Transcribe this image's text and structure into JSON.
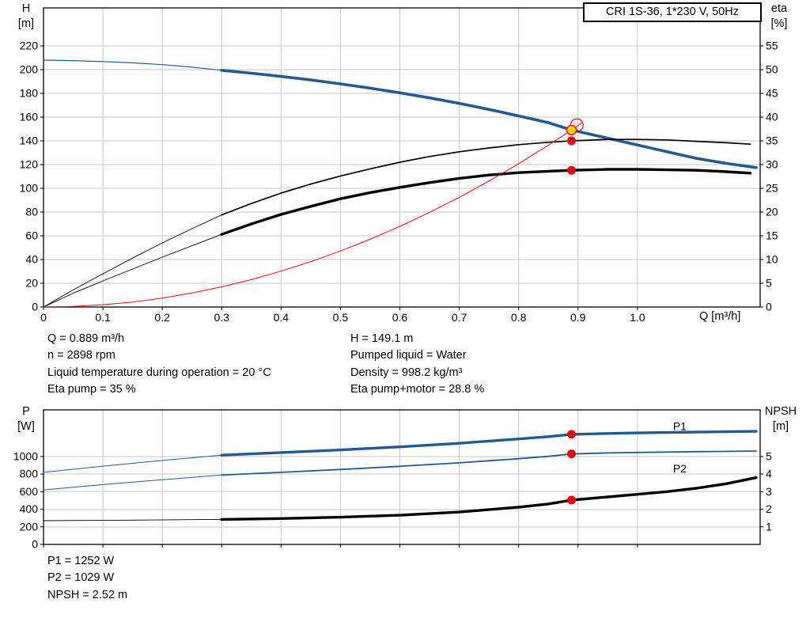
{
  "title_box": {
    "label": "CRI 1S-36, 1*230 V, 50Hz"
  },
  "colors": {
    "blue": "#235a91",
    "red": "#e30613",
    "black": "#000000",
    "yellow": "#ffd500",
    "grid": "#c6c6c6",
    "frame": "#000000"
  },
  "operating_point_info": {
    "left_lines": [
      "Q = 0.889 m³/h",
      "n = 2898 rpm",
      "Liquid temperature during operation = 20 °C",
      "Eta pump = 35 %"
    ],
    "right_lines": [
      "H = 149.1 m",
      "Pumped liquid = Water",
      "Density = 998.2 kg/m³",
      "Eta pump+motor = 28.8 %"
    ]
  },
  "power_info": {
    "lines": [
      "P1 = 1252 W",
      "P2 = 1029 W",
      "NPSH = 2.52 m"
    ]
  },
  "chart_data": [
    {
      "type": "line",
      "name": "head-efficiency-chart",
      "x_axis": {
        "label": "Q [m³/h]",
        "lim": [
          0,
          1.2067
        ],
        "ticks": [
          0,
          0.1,
          0.2,
          0.3,
          0.4,
          0.5,
          0.6,
          0.7,
          0.8,
          0.9,
          1.0
        ],
        "tick_labels": [
          "0",
          "0.1",
          "0.2",
          "0.3",
          "0.4",
          "0.5",
          "0.6",
          "0.7",
          "0.8",
          "0.9",
          "1.0"
        ],
        "show_tick_labels": true
      },
      "y_left": {
        "label": "H [m]",
        "label_line1": "H",
        "label_line2": "[m]",
        "lim": [
          0,
          252
        ],
        "ticks": [
          0,
          20,
          40,
          60,
          80,
          100,
          120,
          140,
          160,
          180,
          200,
          220
        ]
      },
      "y_right": {
        "label": "eta [%]",
        "label_line1": "eta",
        "label_line2": "[%]",
        "lim": [
          0,
          63
        ],
        "ticks": [
          0,
          5,
          10,
          15,
          20,
          25,
          30,
          35,
          40,
          45,
          50,
          55
        ]
      },
      "grid": true,
      "series": [
        {
          "name": "pump-curve-lead-in",
          "axis": "left",
          "color": "blue",
          "width": 1.2,
          "points": [
            [
              0,
              208
            ],
            [
              0.05,
              207.6
            ],
            [
              0.1,
              206.8
            ],
            [
              0.15,
              205.7
            ],
            [
              0.2,
              204.2
            ],
            [
              0.25,
              202.1
            ],
            [
              0.3,
              199.5
            ]
          ]
        },
        {
          "name": "pump-curve",
          "axis": "left",
          "color": "blue",
          "width": 3.6,
          "points": [
            [
              0.3,
              199.5
            ],
            [
              0.35,
              197
            ],
            [
              0.4,
              194.3
            ],
            [
              0.45,
              191.3
            ],
            [
              0.5,
              188
            ],
            [
              0.55,
              184.4
            ],
            [
              0.6,
              180.5
            ],
            [
              0.65,
              176.2
            ],
            [
              0.7,
              171.6
            ],
            [
              0.75,
              166.5
            ],
            [
              0.8,
              161
            ],
            [
              0.85,
              155.3
            ],
            [
              0.889,
              149.1
            ],
            [
              0.95,
              142.3
            ],
            [
              1.0,
              136.5
            ],
            [
              1.05,
              130.8
            ],
            [
              1.1,
              125.2
            ],
            [
              1.15,
              121
            ],
            [
              1.2,
              117.5
            ]
          ]
        },
        {
          "name": "eta-pump-lead-in",
          "axis": "right",
          "color": "black",
          "width": 0.9,
          "points": [
            [
              0,
              0
            ],
            [
              0.05,
              3.6
            ],
            [
              0.1,
              7
            ],
            [
              0.15,
              10.3
            ],
            [
              0.2,
              13.5
            ],
            [
              0.25,
              16.5
            ],
            [
              0.3,
              19.4
            ]
          ]
        },
        {
          "name": "eta-pump-curve",
          "axis": "right",
          "color": "black",
          "width": 1.7,
          "points": [
            [
              0.3,
              19.4
            ],
            [
              0.35,
              21.8
            ],
            [
              0.4,
              24
            ],
            [
              0.45,
              25.9
            ],
            [
              0.5,
              27.6
            ],
            [
              0.55,
              29.1
            ],
            [
              0.6,
              30.5
            ],
            [
              0.65,
              31.7
            ],
            [
              0.7,
              32.7
            ],
            [
              0.75,
              33.5
            ],
            [
              0.8,
              34.2
            ],
            [
              0.85,
              34.7
            ],
            [
              0.889,
              35
            ],
            [
              0.95,
              35.3
            ],
            [
              1.0,
              35.3
            ],
            [
              1.05,
              35.2
            ],
            [
              1.1,
              34.9
            ],
            [
              1.15,
              34.6
            ],
            [
              1.19,
              34.3
            ]
          ]
        },
        {
          "name": "eta-pump-motor-lead-in",
          "axis": "right",
          "color": "black",
          "width": 0.9,
          "points": [
            [
              0,
              0
            ],
            [
              0.05,
              2.9
            ],
            [
              0.1,
              5.5
            ],
            [
              0.15,
              8
            ],
            [
              0.2,
              10.5
            ],
            [
              0.25,
              12.9
            ],
            [
              0.3,
              15.3
            ]
          ]
        },
        {
          "name": "eta-pump-motor-curve",
          "axis": "right",
          "color": "black",
          "width": 3.4,
          "points": [
            [
              0.3,
              15.3
            ],
            [
              0.35,
              17.5
            ],
            [
              0.4,
              19.5
            ],
            [
              0.45,
              21.2
            ],
            [
              0.5,
              22.8
            ],
            [
              0.55,
              24.1
            ],
            [
              0.6,
              25.2
            ],
            [
              0.65,
              26.2
            ],
            [
              0.7,
              27.1
            ],
            [
              0.75,
              27.8
            ],
            [
              0.8,
              28.3
            ],
            [
              0.85,
              28.6
            ],
            [
              0.889,
              28.8
            ],
            [
              0.95,
              29
            ],
            [
              1.0,
              29
            ],
            [
              1.05,
              28.9
            ],
            [
              1.1,
              28.8
            ],
            [
              1.15,
              28.5
            ],
            [
              1.19,
              28.2
            ]
          ]
        },
        {
          "name": "system-curve",
          "axis": "left",
          "color": "red",
          "width": 1,
          "points": [
            [
              0,
              0
            ],
            [
              0.05,
              0.5
            ],
            [
              0.1,
              1.9
            ],
            [
              0.15,
              4.2
            ],
            [
              0.2,
              7.5
            ],
            [
              0.25,
              11.8
            ],
            [
              0.3,
              17
            ],
            [
              0.35,
              23.1
            ],
            [
              0.4,
              30.2
            ],
            [
              0.45,
              38.2
            ],
            [
              0.5,
              47.2
            ],
            [
              0.55,
              57.1
            ],
            [
              0.6,
              67.9
            ],
            [
              0.65,
              79.7
            ],
            [
              0.7,
              92.4
            ],
            [
              0.75,
              106.1
            ],
            [
              0.8,
              120.7
            ],
            [
              0.85,
              136.3
            ],
            [
              0.889,
              149.1
            ],
            [
              0.907,
              155.3
            ]
          ]
        }
      ],
      "markers": [
        {
          "name": "duty-point-ring",
          "type": "ring",
          "axis": "left",
          "x": 0.898,
          "y": 153.2,
          "r": 8,
          "stroke": "red"
        },
        {
          "name": "duty-point",
          "type": "dot",
          "axis": "left",
          "x": 0.889,
          "y": 149.1,
          "r": 6,
          "fill": "yellow",
          "stroke": "red"
        },
        {
          "name": "eta-pump-point",
          "type": "dot",
          "axis": "right",
          "x": 0.889,
          "y": 35,
          "r": 5.5,
          "fill": "red"
        },
        {
          "name": "eta-pump-motor-point",
          "type": "dot",
          "axis": "right",
          "x": 0.889,
          "y": 28.8,
          "r": 5.5,
          "fill": "red"
        }
      ],
      "series_labels": []
    },
    {
      "type": "line",
      "name": "power-npsh-chart",
      "x_axis": {
        "label": "",
        "lim": [
          0,
          1.2067
        ],
        "ticks": [
          0,
          0.1,
          0.2,
          0.3,
          0.4,
          0.5,
          0.6,
          0.7,
          0.8,
          0.9,
          1.0
        ],
        "tick_labels": [],
        "show_tick_labels": false
      },
      "y_left": {
        "label": "P [W]",
        "label_line1": "P",
        "label_line2": "[W]",
        "lim": [
          0,
          1530
        ],
        "ticks": [
          0,
          200,
          400,
          600,
          800,
          1000
        ]
      },
      "y_right": {
        "label": "NPSH [m]",
        "label_line1": "NPSH",
        "label_line2": "[m]",
        "lim": [
          0,
          7.65
        ],
        "ticks": [
          1,
          2,
          3,
          4,
          5
        ]
      },
      "grid": true,
      "series": [
        {
          "name": "p1-lead-in",
          "axis": "left",
          "color": "blue",
          "width": 1,
          "points": [
            [
              0,
              820
            ],
            [
              0.1,
              890
            ],
            [
              0.2,
              955
            ],
            [
              0.3,
              1015
            ]
          ]
        },
        {
          "name": "p1-curve",
          "axis": "left",
          "color": "blue",
          "width": 3.4,
          "points": [
            [
              0.3,
              1015
            ],
            [
              0.4,
              1045
            ],
            [
              0.5,
              1075
            ],
            [
              0.6,
              1110
            ],
            [
              0.7,
              1150
            ],
            [
              0.75,
              1175
            ],
            [
              0.8,
              1200
            ],
            [
              0.85,
              1226
            ],
            [
              0.889,
              1252
            ],
            [
              0.95,
              1262
            ],
            [
              1.0,
              1268
            ],
            [
              1.1,
              1278
            ],
            [
              1.2,
              1286
            ]
          ]
        },
        {
          "name": "p2-lead-in",
          "axis": "left",
          "color": "blue",
          "width": 1,
          "points": [
            [
              0,
              620
            ],
            [
              0.1,
              680
            ],
            [
              0.2,
              736
            ],
            [
              0.3,
              788
            ]
          ]
        },
        {
          "name": "p2-curve",
          "axis": "left",
          "color": "blue",
          "width": 1.8,
          "points": [
            [
              0.3,
              788
            ],
            [
              0.4,
              820
            ],
            [
              0.5,
              852
            ],
            [
              0.6,
              888
            ],
            [
              0.7,
              928
            ],
            [
              0.8,
              975
            ],
            [
              0.85,
              1002
            ],
            [
              0.889,
              1029
            ],
            [
              0.95,
              1040
            ],
            [
              1.0,
              1046
            ],
            [
              1.1,
              1055
            ],
            [
              1.2,
              1062
            ]
          ]
        },
        {
          "name": "npsh-lead-in",
          "axis": "right",
          "color": "black",
          "width": 0.9,
          "points": [
            [
              0,
              1.35
            ],
            [
              0.15,
              1.38
            ],
            [
              0.3,
              1.42
            ]
          ]
        },
        {
          "name": "npsh-curve",
          "axis": "right",
          "color": "black",
          "width": 3.4,
          "points": [
            [
              0.3,
              1.42
            ],
            [
              0.4,
              1.47
            ],
            [
              0.5,
              1.55
            ],
            [
              0.6,
              1.66
            ],
            [
              0.7,
              1.84
            ],
            [
              0.8,
              2.12
            ],
            [
              0.85,
              2.3
            ],
            [
              0.889,
              2.52
            ],
            [
              0.95,
              2.7
            ],
            [
              1.0,
              2.85
            ],
            [
              1.05,
              3.0
            ],
            [
              1.1,
              3.2
            ],
            [
              1.15,
              3.45
            ],
            [
              1.2,
              3.8
            ]
          ]
        }
      ],
      "markers": [
        {
          "name": "p1-point",
          "type": "dot",
          "axis": "left",
          "x": 0.889,
          "y": 1252,
          "r": 5.5,
          "fill": "red"
        },
        {
          "name": "p2-point",
          "type": "dot",
          "axis": "left",
          "x": 0.889,
          "y": 1029,
          "r": 5.5,
          "fill": "red"
        },
        {
          "name": "npsh-point",
          "type": "dot",
          "axis": "right",
          "x": 0.889,
          "y": 2.52,
          "r": 5.5,
          "fill": "red"
        }
      ],
      "series_labels": [
        {
          "name": "p1-series-label",
          "text": "P1",
          "axis": "left",
          "x": 1.06,
          "y": 1300,
          "color": "blue"
        },
        {
          "name": "p2-series-label",
          "text": "P2",
          "axis": "left",
          "x": 1.06,
          "y": 820,
          "color": "blue"
        }
      ]
    }
  ]
}
